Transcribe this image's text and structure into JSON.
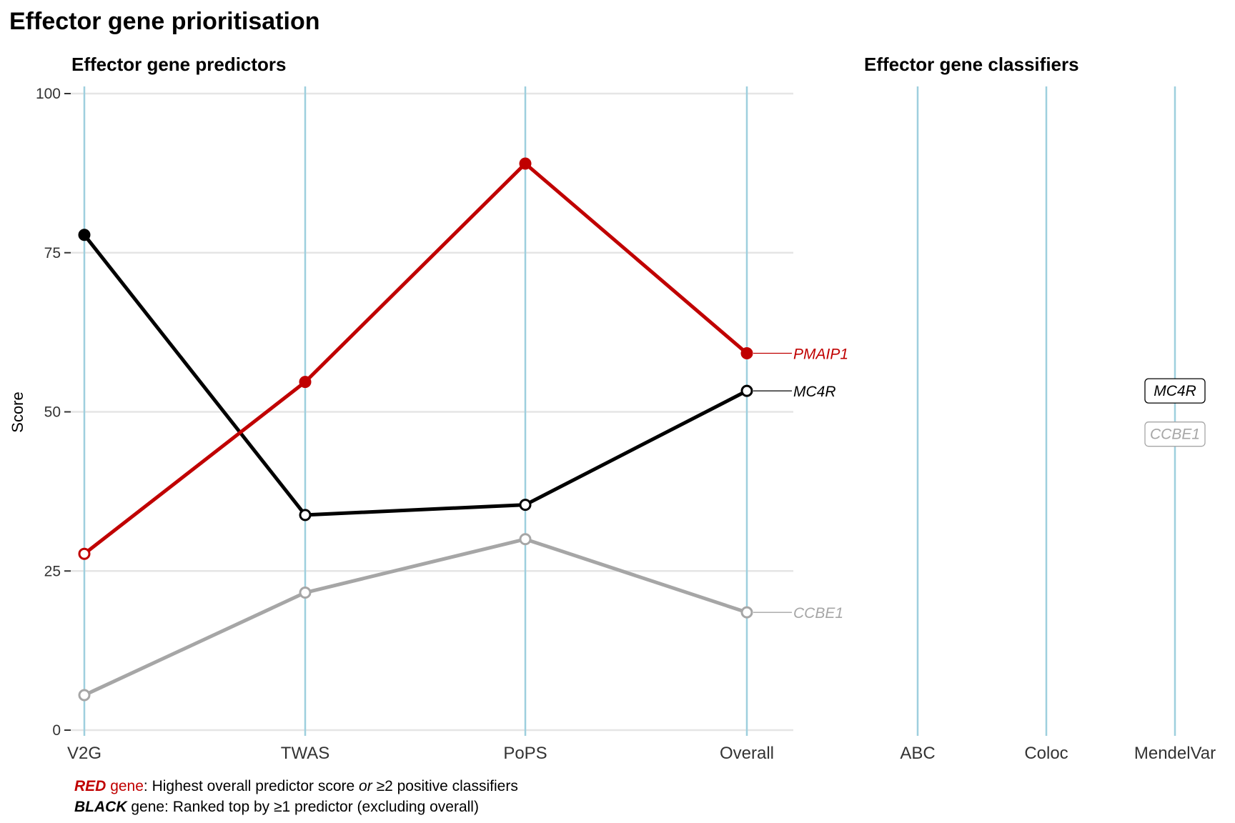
{
  "title": "Effector gene prioritisation",
  "colors": {
    "red": "#c00000",
    "black": "#000000",
    "grey": "#a6a6a6",
    "gridline": "#e5e5e5",
    "category_line": "#9ecfde",
    "tick_text": "#333333"
  },
  "chart_data": [
    {
      "type": "line",
      "title": "Effector gene predictors",
      "ylabel": "Score",
      "xlabel": "",
      "ylim": [
        0,
        100
      ],
      "yticks": [
        0,
        25,
        50,
        75,
        100
      ],
      "grid": true,
      "categories": [
        "V2G",
        "TWAS",
        "PoPS",
        "Overall"
      ],
      "series": [
        {
          "name": "PMAIP1",
          "color": "red",
          "values": [
            27.7,
            54.7,
            89,
            59.2
          ],
          "filled": [
            false,
            true,
            true,
            true
          ]
        },
        {
          "name": "MC4R",
          "color": "black",
          "values": [
            77.8,
            33.8,
            35.4,
            53.3
          ],
          "filled": [
            true,
            false,
            false,
            false
          ]
        },
        {
          "name": "CCBE1",
          "color": "grey",
          "values": [
            5.5,
            21.6,
            30,
            18.5
          ],
          "filled": [
            false,
            false,
            false,
            false
          ]
        }
      ]
    },
    {
      "type": "scatter",
      "title": "Effector gene classifiers",
      "categories": [
        "ABC",
        "Coloc",
        "MendelVar"
      ],
      "labels": [
        {
          "gene": "MC4R",
          "category": "MendelVar",
          "value": 53.3,
          "color": "black"
        },
        {
          "gene": "CCBE1",
          "category": "MendelVar",
          "value": 46.5,
          "color": "grey"
        }
      ]
    }
  ],
  "legend": {
    "red": {
      "keyword": "RED",
      "gene_word": "gene",
      "text_a": ": Highest overall predictor score ",
      "or_word": "or",
      "text_b": " ≥2 positive classifiers"
    },
    "black": {
      "keyword": "BLACK",
      "text": " gene: Ranked top by ≥1 predictor (excluding overall)"
    }
  }
}
